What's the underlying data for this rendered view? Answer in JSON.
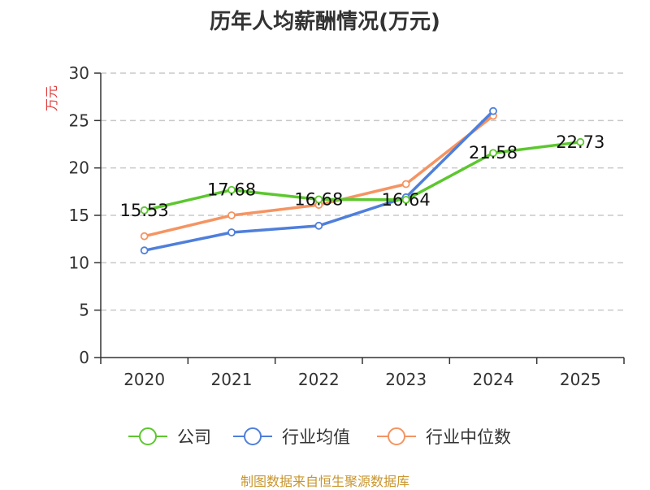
{
  "page": {
    "title": "历年人均薪酬情况(万元)",
    "source": "制图数据来自恒生聚源数据库"
  },
  "chart_data": {
    "type": "line",
    "title": "历年人均薪酬情况(万元)",
    "xlabel": "",
    "ylabel": "万元",
    "categories": [
      "2020",
      "2021",
      "2022",
      "2023",
      "2024",
      "2025"
    ],
    "ylim": [
      0,
      30
    ],
    "yticks": [
      0,
      5,
      10,
      15,
      20,
      25,
      30
    ],
    "grid": true,
    "legend_position": "bottom",
    "series": [
      {
        "name": "公司",
        "color": "#5cc72e",
        "values": [
          15.53,
          17.68,
          16.68,
          16.64,
          21.58,
          22.73
        ],
        "labels": [
          "15.53",
          "17.68",
          "16.68",
          "16.64",
          "21.58",
          "22.73"
        ]
      },
      {
        "name": "行业均值",
        "color": "#4f7fdb",
        "values": [
          11.3,
          13.2,
          13.9,
          16.9,
          26.0,
          null
        ]
      },
      {
        "name": "行业中位数",
        "color": "#f59462",
        "values": [
          12.8,
          15.0,
          16.1,
          18.3,
          25.5,
          null
        ]
      }
    ]
  }
}
